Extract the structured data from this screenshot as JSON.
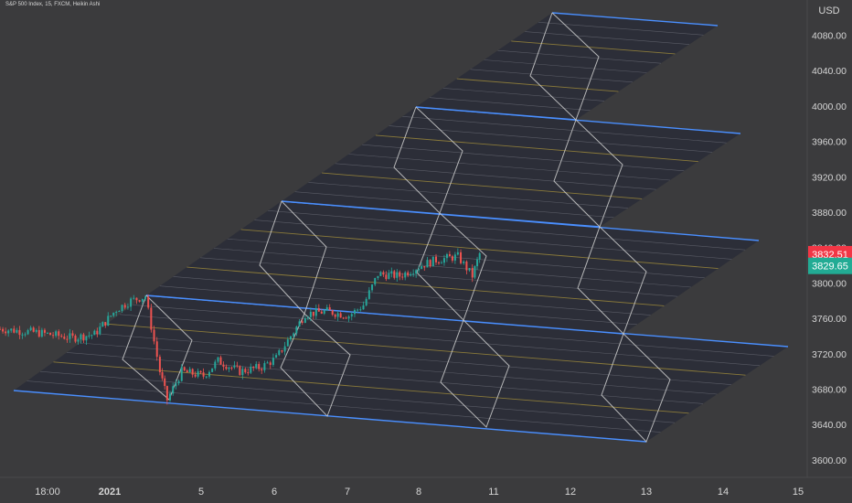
{
  "header": {
    "symbol_line": "S&P 500 Index, 15, FXCM, Heikin Ashi"
  },
  "price_axis": {
    "currency": "USD",
    "ticks": [
      "4080.00",
      "4040.00",
      "4000.00",
      "3960.00",
      "3920.00",
      "3880.00",
      "3840.00",
      "3800.00",
      "3760.00",
      "3720.00",
      "3680.00",
      "3640.00",
      "3600.00"
    ],
    "last_price": "3832.51",
    "last_price_color": "#f23645",
    "other_price": "3829.65",
    "other_price_color": "#22ab94"
  },
  "time_axis": {
    "labels": [
      "18:00",
      "2021",
      "5",
      "6",
      "7",
      "8",
      "11",
      "12",
      "13",
      "14",
      "15"
    ]
  },
  "colors": {
    "background": "#3b3b3d",
    "channel_fill": "#2a2c37",
    "channel_edge": "#4a8fff",
    "rhombus": "#cfcfcf",
    "gold_line": "#8a7a3a",
    "grey_line": "#5a5c66",
    "up_candle": "#26a69a",
    "down_candle": "#ef5350"
  },
  "chart_data": {
    "type": "candlestick",
    "title": "S&P 500 Index, 15, FXCM, Heikin Ashi",
    "ylabel": "USD",
    "ylim": [
      3590,
      4110
    ],
    "x_labels": [
      "18:00",
      "2021",
      "5",
      "6",
      "7",
      "8",
      "11",
      "12",
      "13",
      "14",
      "15"
    ],
    "last_price": 3832.51,
    "series": [
      {
        "name": "S&P 500 Index",
        "path_estimate": [
          [
            0,
            3748
          ],
          [
            0.5,
            3744
          ],
          [
            1,
            3738
          ],
          [
            1.3,
            3742
          ],
          [
            1.6,
            3770
          ],
          [
            1.8,
            3780
          ],
          [
            2.0,
            3785
          ],
          [
            2.2,
            3700
          ],
          [
            2.3,
            3668
          ],
          [
            2.5,
            3700
          ],
          [
            2.8,
            3695
          ],
          [
            3.0,
            3712
          ],
          [
            3.3,
            3700
          ],
          [
            3.6,
            3705
          ],
          [
            3.8,
            3715
          ],
          [
            4.0,
            3740
          ],
          [
            4.2,
            3765
          ],
          [
            4.5,
            3768
          ],
          [
            4.8,
            3763
          ],
          [
            5.0,
            3775
          ],
          [
            5.2,
            3810
          ],
          [
            5.5,
            3808
          ],
          [
            5.8,
            3820
          ],
          [
            6.0,
            3826
          ],
          [
            6.3,
            3830
          ],
          [
            6.5,
            3808
          ],
          [
            6.6,
            3833
          ]
        ]
      }
    ]
  }
}
